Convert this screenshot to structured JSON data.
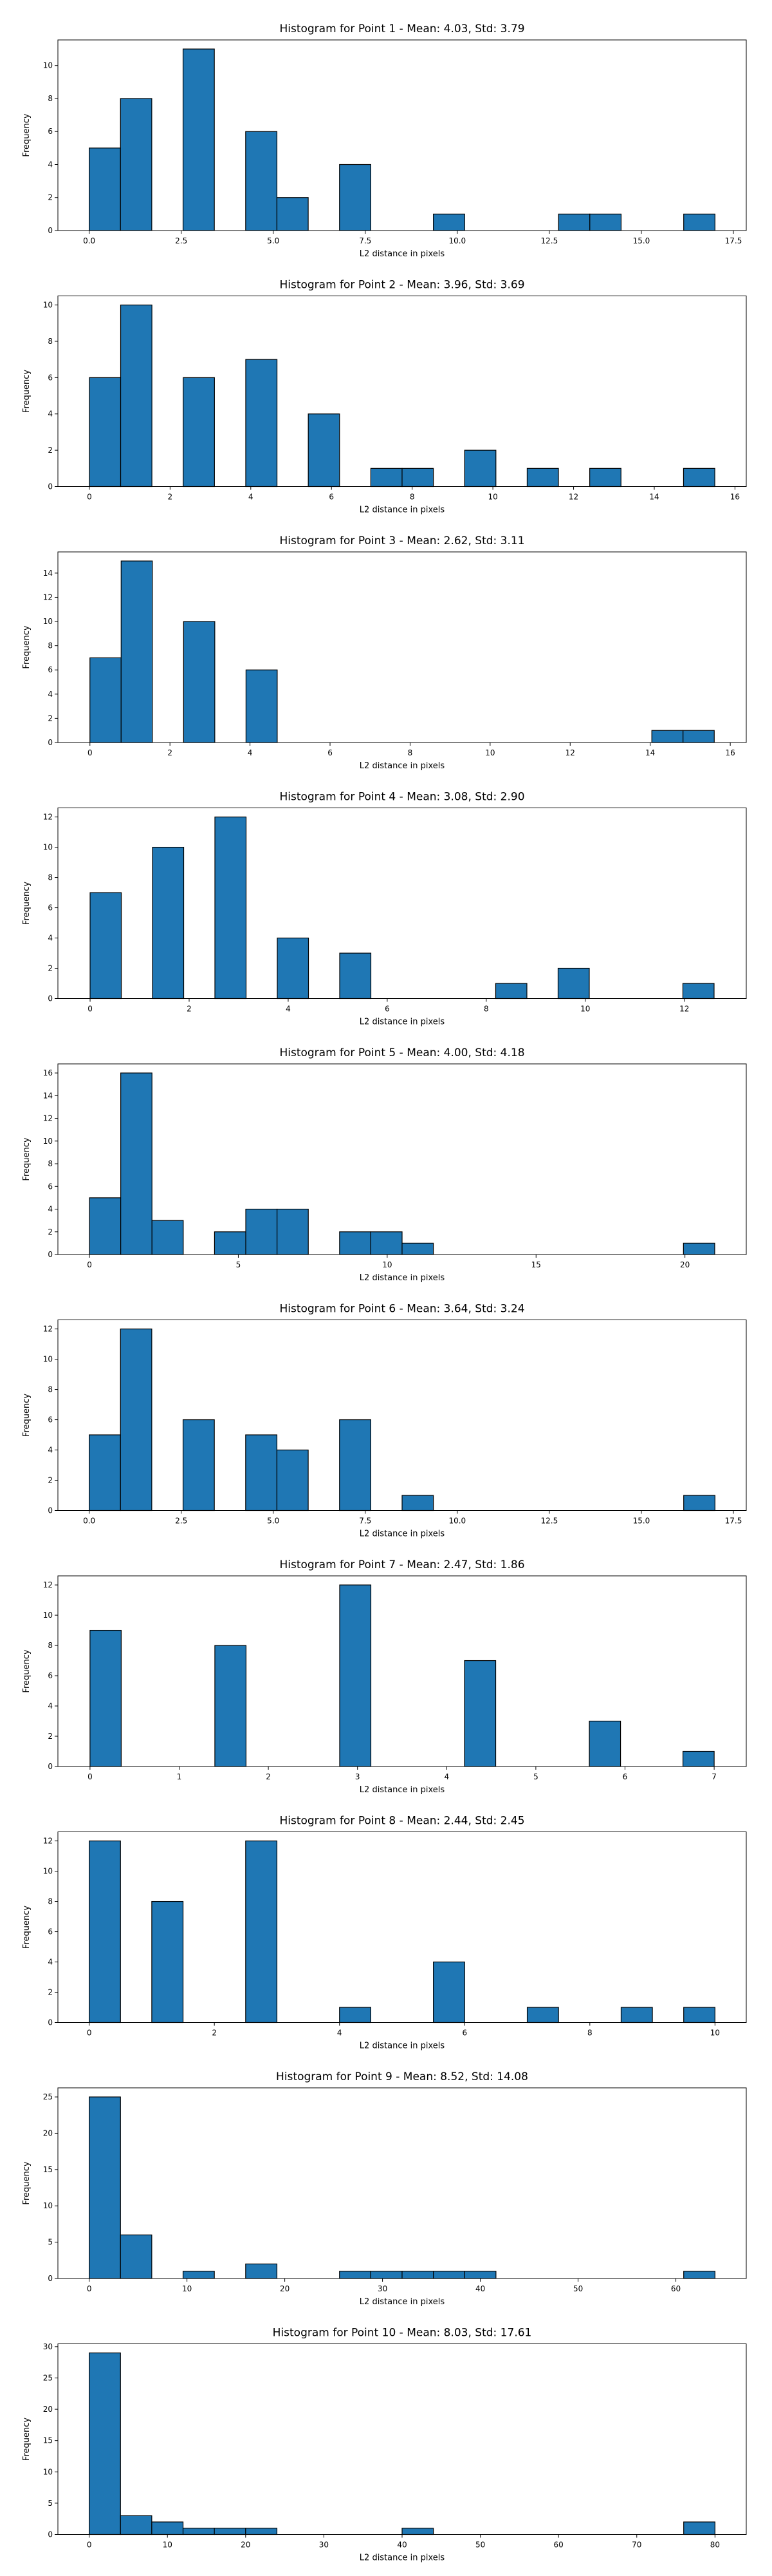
{
  "chart_data": [
    {
      "type": "bar",
      "title": "Histogram for Point 1 - Mean: 4.03, Std: 3.79",
      "xlabel": "L2 distance in pixels",
      "ylabel": "Frequency",
      "bar_color": "#1f77b4",
      "edge_color": "#000000",
      "xlim": [
        -0.85,
        17.85
      ],
      "ylim": [
        0,
        11.55
      ],
      "xticks": [
        0.0,
        2.5,
        5.0,
        7.5,
        10.0,
        12.5,
        15.0,
        17.5
      ],
      "xtick_labels": [
        "0.0",
        "2.5",
        "5.0",
        "7.5",
        "10.0",
        "12.5",
        "15.0",
        "17.5"
      ],
      "yticks": [
        0,
        2,
        4,
        6,
        8,
        10
      ],
      "ytick_labels": [
        "0",
        "2",
        "4",
        "6",
        "8",
        "10"
      ],
      "bars": [
        [
          0,
          0.85,
          5
        ],
        [
          0.85,
          1.7,
          8
        ],
        [
          2.55,
          3.4,
          11
        ],
        [
          4.25,
          5.1,
          6
        ],
        [
          5.1,
          5.95,
          2
        ],
        [
          6.8,
          7.65,
          4
        ],
        [
          9.35,
          10.2,
          1
        ],
        [
          12.75,
          13.6,
          1
        ],
        [
          13.6,
          14.45,
          1
        ],
        [
          16.15,
          17.0,
          1
        ]
      ]
    },
    {
      "type": "bar",
      "title": "Histogram for Point 2 - Mean: 3.96, Std: 3.69",
      "xlabel": "L2 distance in pixels",
      "ylabel": "Frequency",
      "bar_color": "#1f77b4",
      "edge_color": "#000000",
      "xlim": [
        -0.78,
        16.28
      ],
      "ylim": [
        0,
        10.5
      ],
      "xticks": [
        0,
        2,
        4,
        6,
        8,
        10,
        12,
        14,
        16
      ],
      "xtick_labels": [
        "0",
        "2",
        "4",
        "6",
        "8",
        "10",
        "12",
        "14",
        "16"
      ],
      "yticks": [
        0,
        2,
        4,
        6,
        8,
        10
      ],
      "ytick_labels": [
        "0",
        "2",
        "4",
        "6",
        "8",
        "10"
      ],
      "bars": [
        [
          0,
          0.775,
          6
        ],
        [
          0.775,
          1.55,
          10
        ],
        [
          2.325,
          3.1,
          6
        ],
        [
          3.875,
          4.65,
          7
        ],
        [
          5.425,
          6.2,
          4
        ],
        [
          6.975,
          7.75,
          1
        ],
        [
          7.75,
          8.525,
          1
        ],
        [
          9.3,
          10.075,
          2
        ],
        [
          10.85,
          11.625,
          1
        ],
        [
          12.4,
          13.175,
          1
        ],
        [
          14.725,
          15.5,
          1
        ]
      ]
    },
    {
      "type": "bar",
      "title": "Histogram for Point 3 - Mean: 2.62, Std: 3.11",
      "xlabel": "L2 distance in pixels",
      "ylabel": "Frequency",
      "bar_color": "#1f77b4",
      "edge_color": "#000000",
      "xlim": [
        -0.8,
        16.4
      ],
      "ylim": [
        0,
        15.75
      ],
      "xticks": [
        0,
        2,
        4,
        6,
        8,
        10,
        12,
        14,
        16
      ],
      "xtick_labels": [
        "0",
        "2",
        "4",
        "6",
        "8",
        "10",
        "12",
        "14",
        "16"
      ],
      "yticks": [
        0,
        2,
        4,
        6,
        8,
        10,
        12,
        14
      ],
      "ytick_labels": [
        "0",
        "2",
        "4",
        "6",
        "8",
        "10",
        "12",
        "14"
      ],
      "bars": [
        [
          0,
          0.78,
          7
        ],
        [
          0.78,
          1.56,
          15
        ],
        [
          2.34,
          3.12,
          10
        ],
        [
          3.9,
          4.68,
          6
        ],
        [
          14.04,
          14.82,
          1
        ],
        [
          14.82,
          15.6,
          1
        ]
      ]
    },
    {
      "type": "bar",
      "title": "Histogram for Point 4 - Mean: 3.08, Std: 2.90",
      "xlabel": "L2 distance in pixels",
      "ylabel": "Frequency",
      "bar_color": "#1f77b4",
      "edge_color": "#000000",
      "xlim": [
        -0.65,
        13.25
      ],
      "ylim": [
        0,
        12.6
      ],
      "xticks": [
        0,
        2,
        4,
        6,
        8,
        10,
        12
      ],
      "xtick_labels": [
        "0",
        "2",
        "4",
        "6",
        "8",
        "10",
        "12"
      ],
      "yticks": [
        0,
        2,
        4,
        6,
        8,
        10,
        12
      ],
      "ytick_labels": [
        "0",
        "2",
        "4",
        "6",
        "8",
        "10",
        "12"
      ],
      "bars": [
        [
          0,
          0.63,
          7
        ],
        [
          1.26,
          1.89,
          10
        ],
        [
          2.52,
          3.15,
          12
        ],
        [
          3.78,
          4.41,
          4
        ],
        [
          5.04,
          5.67,
          3
        ],
        [
          8.19,
          8.82,
          1
        ],
        [
          9.45,
          10.08,
          2
        ],
        [
          11.97,
          12.6,
          1
        ]
      ]
    },
    {
      "type": "bar",
      "title": "Histogram for Point 5 - Mean: 4.00, Std: 4.18",
      "xlabel": "L2 distance in pixels",
      "ylabel": "Frequency",
      "bar_color": "#1f77b4",
      "edge_color": "#000000",
      "xlim": [
        -1.06,
        22.06
      ],
      "ylim": [
        0,
        16.8
      ],
      "xticks": [
        0,
        5,
        10,
        15,
        20
      ],
      "xtick_labels": [
        "0",
        "5",
        "10",
        "15",
        "20"
      ],
      "yticks": [
        0,
        2,
        4,
        6,
        8,
        10,
        12,
        14,
        16
      ],
      "ytick_labels": [
        "0",
        "2",
        "4",
        "6",
        "8",
        "10",
        "12",
        "14",
        "16"
      ],
      "bars": [
        [
          0,
          1.05,
          5
        ],
        [
          1.05,
          2.1,
          16
        ],
        [
          2.1,
          3.15,
          3
        ],
        [
          4.2,
          5.25,
          2
        ],
        [
          5.25,
          6.3,
          4
        ],
        [
          6.3,
          7.35,
          4
        ],
        [
          8.4,
          9.45,
          2
        ],
        [
          9.45,
          10.5,
          2
        ],
        [
          10.5,
          11.55,
          1
        ],
        [
          19.95,
          21.0,
          1
        ]
      ]
    },
    {
      "type": "bar",
      "title": "Histogram for Point 6 - Mean: 3.64, Std: 3.24",
      "xlabel": "L2 distance in pixels",
      "ylabel": "Frequency",
      "bar_color": "#1f77b4",
      "edge_color": "#000000",
      "xlim": [
        -0.85,
        17.85
      ],
      "ylim": [
        0,
        12.6
      ],
      "xticks": [
        0.0,
        2.5,
        5.0,
        7.5,
        10.0,
        12.5,
        15.0,
        17.5
      ],
      "xtick_labels": [
        "0.0",
        "2.5",
        "5.0",
        "7.5",
        "10.0",
        "12.5",
        "15.0",
        "17.5"
      ],
      "yticks": [
        0,
        2,
        4,
        6,
        8,
        10,
        12
      ],
      "ytick_labels": [
        "0",
        "2",
        "4",
        "6",
        "8",
        "10",
        "12"
      ],
      "bars": [
        [
          0,
          0.85,
          5
        ],
        [
          0.85,
          1.7,
          12
        ],
        [
          2.55,
          3.4,
          6
        ],
        [
          4.25,
          5.1,
          5
        ],
        [
          5.1,
          5.95,
          4
        ],
        [
          6.8,
          7.65,
          6
        ],
        [
          8.5,
          9.35,
          1
        ],
        [
          16.15,
          17.0,
          1
        ]
      ]
    },
    {
      "type": "bar",
      "title": "Histogram for Point 7 - Mean: 2.47, Std: 1.86",
      "xlabel": "L2 distance in pixels",
      "ylabel": "Frequency",
      "bar_color": "#1f77b4",
      "edge_color": "#000000",
      "xlim": [
        -0.36,
        7.36
      ],
      "ylim": [
        0,
        12.6
      ],
      "xticks": [
        0,
        1,
        2,
        3,
        4,
        5,
        6,
        7
      ],
      "xtick_labels": [
        "0",
        "1",
        "2",
        "3",
        "4",
        "5",
        "6",
        "7"
      ],
      "yticks": [
        0,
        2,
        4,
        6,
        8,
        10,
        12
      ],
      "ytick_labels": [
        "0",
        "2",
        "4",
        "6",
        "8",
        "10",
        "12"
      ],
      "bars": [
        [
          0,
          0.35,
          9
        ],
        [
          1.4,
          1.75,
          8
        ],
        [
          2.8,
          3.15,
          12
        ],
        [
          4.2,
          4.55,
          7
        ],
        [
          5.6,
          5.95,
          3
        ],
        [
          6.65,
          7.0,
          1
        ]
      ]
    },
    {
      "type": "bar",
      "title": "Histogram for Point 8 - Mean: 2.44, Std: 2.45",
      "xlabel": "L2 distance in pixels",
      "ylabel": "Frequency",
      "bar_color": "#1f77b4",
      "edge_color": "#000000",
      "xlim": [
        -0.5,
        10.5
      ],
      "ylim": [
        0,
        12.6
      ],
      "xticks": [
        0,
        2,
        4,
        6,
        8,
        10
      ],
      "xtick_labels": [
        "0",
        "2",
        "4",
        "6",
        "8",
        "10"
      ],
      "yticks": [
        0,
        2,
        4,
        6,
        8,
        10,
        12
      ],
      "ytick_labels": [
        "0",
        "2",
        "4",
        "6",
        "8",
        "10",
        "12"
      ],
      "bars": [
        [
          0,
          0.5,
          12
        ],
        [
          1.0,
          1.5,
          8
        ],
        [
          2.5,
          3.0,
          12
        ],
        [
          4.0,
          4.5,
          1
        ],
        [
          5.5,
          6.0,
          4
        ],
        [
          7.0,
          7.5,
          1
        ],
        [
          8.5,
          9.0,
          1
        ],
        [
          9.5,
          10.0,
          1
        ]
      ]
    },
    {
      "type": "bar",
      "title": "Histogram for Point 9 - Mean: 8.52, Std: 14.08",
      "xlabel": "L2 distance in pixels",
      "ylabel": "Frequency",
      "bar_color": "#1f77b4",
      "edge_color": "#000000",
      "xlim": [
        -3.2,
        67.2
      ],
      "ylim": [
        0,
        26.25
      ],
      "xticks": [
        0,
        10,
        20,
        30,
        40,
        50,
        60
      ],
      "xtick_labels": [
        "0",
        "10",
        "20",
        "30",
        "40",
        "50",
        "60"
      ],
      "yticks": [
        0,
        5,
        10,
        15,
        20,
        25
      ],
      "ytick_labels": [
        "0",
        "5",
        "10",
        "15",
        "20",
        "25"
      ],
      "bars": [
        [
          0,
          3.2,
          25
        ],
        [
          3.2,
          6.4,
          6
        ],
        [
          9.6,
          12.8,
          1
        ],
        [
          16.0,
          19.2,
          2
        ],
        [
          25.6,
          28.8,
          1
        ],
        [
          28.8,
          32.0,
          1
        ],
        [
          32.0,
          35.2,
          1
        ],
        [
          35.2,
          38.4,
          1
        ],
        [
          38.4,
          41.6,
          1
        ],
        [
          60.8,
          64.0,
          1
        ]
      ]
    },
    {
      "type": "bar",
      "title": "Histogram for Point 10 - Mean: 8.03, Std: 17.61",
      "xlabel": "L2 distance in pixels",
      "ylabel": "Frequency",
      "bar_color": "#1f77b4",
      "edge_color": "#000000",
      "xlim": [
        -4.0,
        84.0
      ],
      "ylim": [
        0,
        30.45
      ],
      "xticks": [
        0,
        10,
        20,
        30,
        40,
        50,
        60,
        70,
        80
      ],
      "xtick_labels": [
        "0",
        "10",
        "20",
        "30",
        "40",
        "50",
        "60",
        "70",
        "80"
      ],
      "yticks": [
        0,
        5,
        10,
        15,
        20,
        25,
        30
      ],
      "ytick_labels": [
        "0",
        "5",
        "10",
        "15",
        "20",
        "25",
        "30"
      ],
      "bars": [
        [
          0,
          4.0,
          29
        ],
        [
          4.0,
          8.0,
          3
        ],
        [
          8.0,
          12.0,
          2
        ],
        [
          12.0,
          16.0,
          1
        ],
        [
          16.0,
          20.0,
          1
        ],
        [
          20.0,
          24.0,
          1
        ],
        [
          40.0,
          44.0,
          1
        ],
        [
          76.0,
          80.0,
          2
        ]
      ]
    }
  ]
}
